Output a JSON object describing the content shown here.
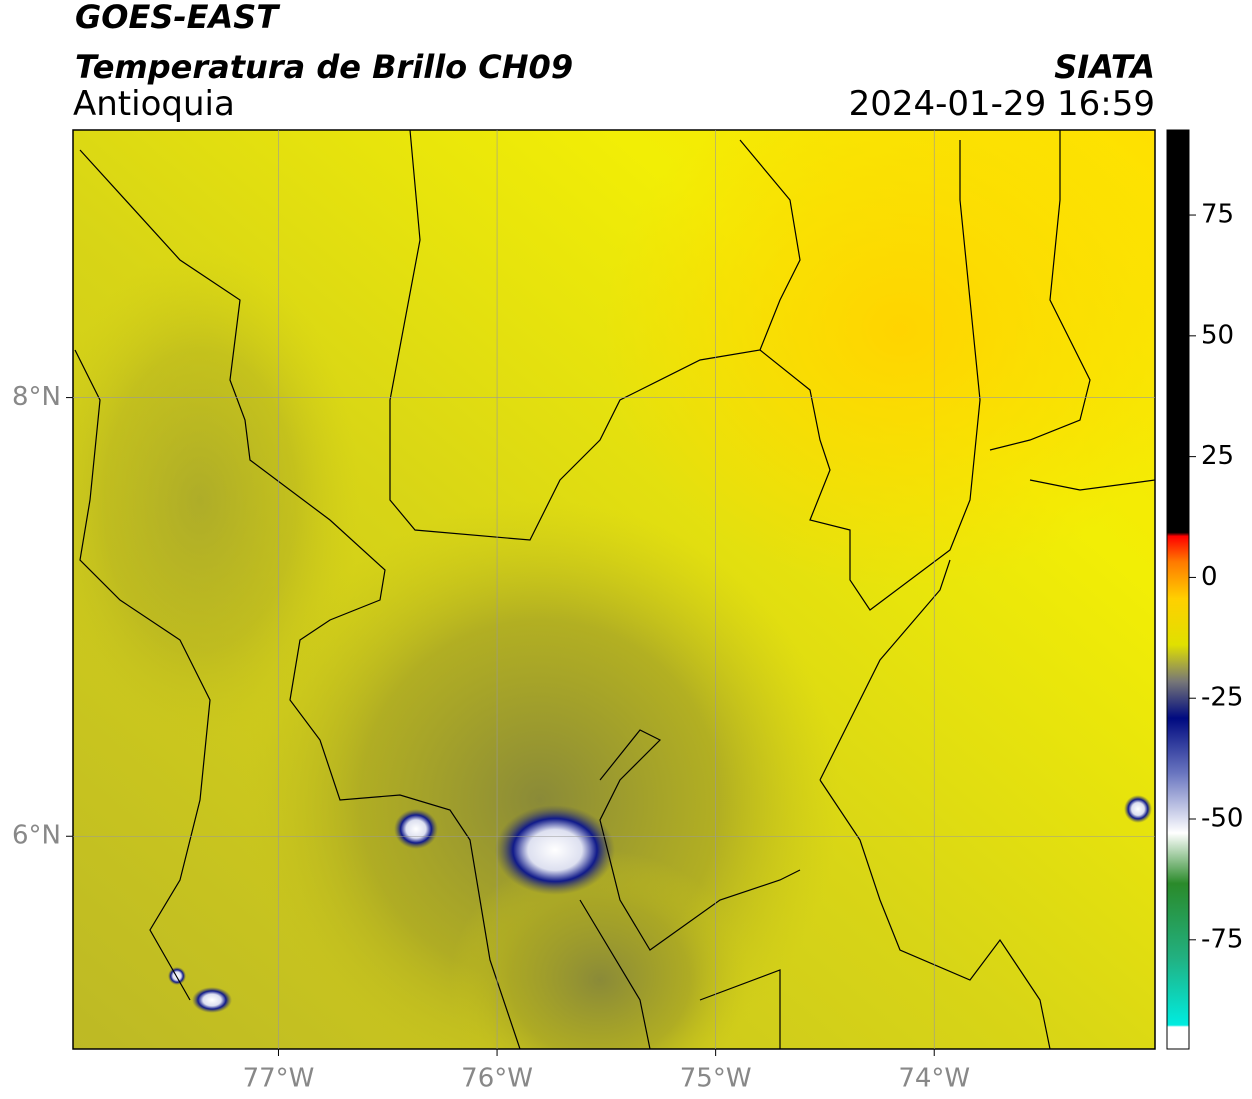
{
  "header": {
    "title": "GOES-EAST",
    "subtitle": "Temperatura de Brillo CH09",
    "region": "Antioquia",
    "source": "SIATA",
    "datetime": "2024-01-29 16:59"
  },
  "map": {
    "xlim": [
      -77.94,
      -72.99
    ],
    "ylim": [
      5.03,
      9.22
    ],
    "xticks": [
      {
        "value": -77,
        "label": "77°W"
      },
      {
        "value": -76,
        "label": "76°W"
      },
      {
        "value": -75,
        "label": "75°W"
      },
      {
        "value": -74,
        "label": "74°W"
      }
    ],
    "yticks": [
      {
        "value": 6,
        "label": "6°N"
      },
      {
        "value": 8,
        "label": "8°N"
      }
    ]
  },
  "colorbar": {
    "lim": [
      -97.6,
      92.6
    ],
    "ticks": [
      75,
      50,
      25,
      0,
      -25,
      -50,
      -75
    ]
  }
}
